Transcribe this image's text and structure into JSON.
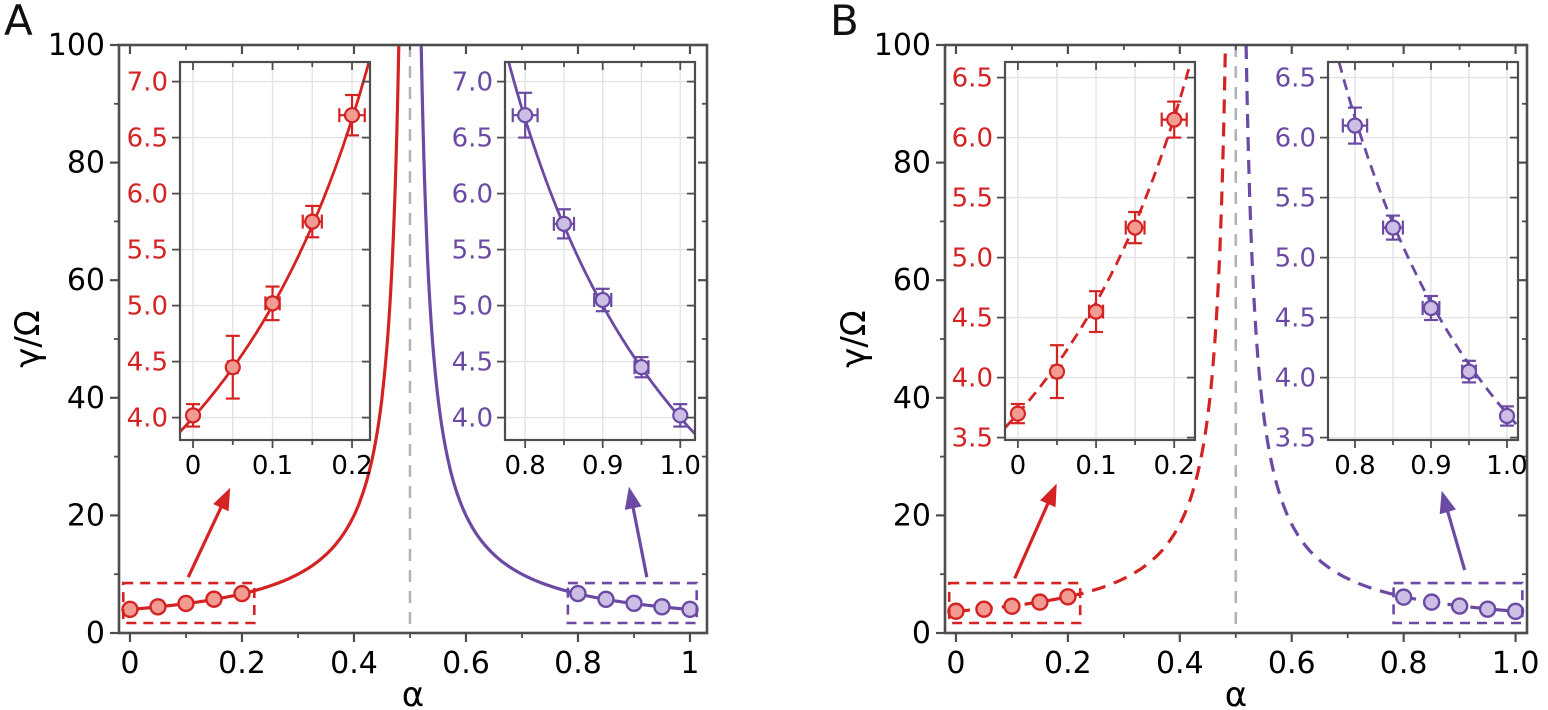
{
  "figure": {
    "background": "#ffffff"
  },
  "colors": {
    "red": "#D42323",
    "red_marker_fill": "#F29B92",
    "purple": "#6B4AA3",
    "purple_marker_fill": "#CDBEE6",
    "divergence_line": "#B3B3B3",
    "spine": "#4D4D4D",
    "grid": "#E3E3E3"
  },
  "chart_data": {
    "type": "line",
    "title": "",
    "description": "Damping rate gamma/Omega versus alpha, diverging at alpha = 0.5; panel A solid curves, panel B dashed curves; each panel has two zoom insets with error-bar data.",
    "panels": [
      {
        "label": "A",
        "line_style": "solid",
        "xlabel": "α",
        "ylabel": "γ/Ω",
        "xlim": [
          -0.0196,
          1.0304
        ],
        "ylim": [
          0,
          100
        ],
        "xticks": [
          0,
          0.2,
          0.4,
          0.6,
          0.8,
          1.0
        ],
        "xtick_labels": [
          "0",
          "0.2",
          "0.4",
          "0.6",
          "0.8",
          "1"
        ],
        "x_minor_step": 0.1,
        "yticks": [
          0,
          20,
          40,
          60,
          80,
          100
        ],
        "ytick_labels": [
          "0",
          "20",
          "40",
          "60",
          "80",
          "100"
        ],
        "y_minor_step": 10,
        "grid": false,
        "legend": "none",
        "divergence_x": 0.5,
        "curve_model": {
          "formula": "y = A0 / |1 - 2*alpha|^p",
          "A0": 4.0,
          "p": 1.0
        },
        "branches": [
          {
            "name": "low-alpha-branch",
            "color": "#D42323",
            "domain": [
              0.0,
              0.5
            ]
          },
          {
            "name": "high-alpha-branch",
            "color": "#6B4AA3",
            "domain": [
              0.5,
              1.0
            ]
          }
        ],
        "series": [
          {
            "name": "data-low-alpha",
            "color": "#D42323",
            "marker_fill": "#F29B92",
            "x": [
              0,
              0.05,
              0.1,
              0.15,
              0.2
            ],
            "y": [
              4.02,
              4.45,
              5.02,
              5.75,
              6.7
            ],
            "yerr": [
              0.1,
              0.28,
              0.15,
              0.14,
              0.18
            ],
            "xerr": [
              0.004,
              0.006,
              0.009,
              0.012,
              0.016
            ]
          },
          {
            "name": "data-high-alpha",
            "color": "#6B4AA3",
            "marker_fill": "#CDBEE6",
            "x": [
              0.8,
              0.85,
              0.9,
              0.95,
              1.0
            ],
            "y": [
              6.7,
              5.73,
              5.05,
              4.45,
              4.02
            ],
            "yerr": [
              0.2,
              0.13,
              0.1,
              0.09,
              0.1
            ],
            "xerr": [
              0.016,
              0.013,
              0.011,
              0.009,
              0.004
            ]
          }
        ],
        "zoom_boxes": [
          {
            "color": "#D42323",
            "x": [
              -0.012,
              0.222
            ],
            "y": [
              1.7,
              8.5
            ]
          },
          {
            "color": "#6B4AA3",
            "x": [
              0.782,
              1.012
            ],
            "y": [
              1.7,
              8.5
            ]
          }
        ],
        "arrows": [
          {
            "color": "#D42323",
            "from": [
              0.104,
              9.5
            ],
            "to": [
              0.179,
              24.7
            ]
          },
          {
            "color": "#6B4AA3",
            "from": [
              0.923,
              9.5
            ],
            "to": [
              0.891,
              24.9
            ]
          }
        ],
        "insets": [
          {
            "side": "left",
            "tick_color": "#D42323",
            "series_ref": 0,
            "xlim": [
              -0.0164,
              0.2226
            ],
            "ylim": [
              3.8,
              7.175
            ],
            "xticks": [
              0,
              0.1,
              0.2
            ],
            "xtick_labels": [
              "0",
              "0.1",
              "0.2"
            ],
            "x_minor_step": 0.05,
            "yticks": [
              4.0,
              4.5,
              5.0,
              5.5,
              6.0,
              6.5,
              7.0
            ],
            "ytick_labels": [
              "4.0",
              "4.5",
              "5.0",
              "5.5",
              "6.0",
              "6.5",
              "7.0"
            ]
          },
          {
            "side": "right",
            "tick_color": "#6B4AA3",
            "series_ref": 1,
            "xlim": [
              0.774,
              1.019
            ],
            "ylim": [
              3.8,
              7.175
            ],
            "xticks": [
              0.8,
              0.9,
              1.0
            ],
            "xtick_labels": [
              "0.8",
              "0.9",
              "1.0"
            ],
            "x_minor_step": 0.05,
            "yticks": [
              4.0,
              4.5,
              5.0,
              5.5,
              6.0,
              6.5,
              7.0
            ],
            "ytick_labels": [
              "4.0",
              "4.5",
              "5.0",
              "5.5",
              "6.0",
              "6.5",
              "7.0"
            ]
          }
        ]
      },
      {
        "label": "B",
        "line_style": "dashed",
        "xlabel": "α",
        "ylabel": "γ/Ω",
        "xlim": [
          -0.0196,
          1.0204
        ],
        "ylim": [
          0,
          100
        ],
        "xticks": [
          0,
          0.2,
          0.4,
          0.6,
          0.8,
          1.0
        ],
        "xtick_labels": [
          "0",
          "0.2",
          "0.4",
          "0.6",
          "0.8",
          "1.0"
        ],
        "x_minor_step": 0.1,
        "yticks": [
          0,
          20,
          40,
          60,
          80,
          100
        ],
        "ytick_labels": [
          "0",
          "20",
          "40",
          "60",
          "80",
          "100"
        ],
        "y_minor_step": 10,
        "grid": false,
        "legend": "none",
        "divergence_x": 0.5,
        "curve_model": {
          "formula": "y = A0 / |1 - 2*alpha|^p",
          "A0": 3.7,
          "p": 1.0
        },
        "branches": [
          {
            "name": "low-alpha-branch",
            "color": "#D42323",
            "domain": [
              0.0,
              0.5
            ]
          },
          {
            "name": "high-alpha-branch",
            "color": "#6B4AA3",
            "domain": [
              0.5,
              1.0
            ]
          }
        ],
        "series": [
          {
            "name": "data-low-alpha",
            "color": "#D42323",
            "marker_fill": "#F29B92",
            "x": [
              0,
              0.05,
              0.1,
              0.15,
              0.2
            ],
            "y": [
              3.7,
              4.05,
              4.55,
              5.25,
              6.15
            ],
            "yerr": [
              0.08,
              0.22,
              0.17,
              0.13,
              0.15
            ],
            "xerr": [
              0.004,
              0.006,
              0.009,
              0.012,
              0.016
            ]
          },
          {
            "name": "data-high-alpha",
            "color": "#6B4AA3",
            "marker_fill": "#CDBEE6",
            "x": [
              0.8,
              0.85,
              0.9,
              0.95,
              1.0
            ],
            "y": [
              6.1,
              5.25,
              4.58,
              4.05,
              3.68
            ],
            "yerr": [
              0.15,
              0.1,
              0.1,
              0.09,
              0.08
            ],
            "xerr": [
              0.016,
              0.013,
              0.011,
              0.009,
              0.004
            ]
          }
        ],
        "zoom_boxes": [
          {
            "color": "#D42323",
            "x": [
              -0.012,
              0.222
            ],
            "y": [
              1.7,
              8.5
            ]
          },
          {
            "color": "#6B4AA3",
            "x": [
              0.782,
              1.012
            ],
            "y": [
              1.7,
              8.5
            ]
          }
        ],
        "arrows": [
          {
            "color": "#D42323",
            "from": [
              0.105,
              9.3
            ],
            "to": [
              0.18,
              25.4
            ]
          },
          {
            "color": "#6B4AA3",
            "from": [
              0.909,
              10.7
            ],
            "to": [
              0.868,
              24.2
            ]
          }
        ],
        "insets": [
          {
            "side": "left",
            "tick_color": "#D42323",
            "series_ref": 0,
            "xlim": [
              -0.0165,
              0.2266
            ],
            "ylim": [
              3.48,
              6.63
            ],
            "xticks": [
              0,
              0.1,
              0.2
            ],
            "xtick_labels": [
              "0",
              "0.1",
              "0.2"
            ],
            "x_minor_step": 0.05,
            "yticks": [
              3.5,
              4.0,
              4.5,
              5.0,
              5.5,
              6.0,
              6.5
            ],
            "ytick_labels": [
              "3.5",
              "4.0",
              "4.5",
              "5.0",
              "5.5",
              "6.0",
              "6.5"
            ]
          },
          {
            "side": "right",
            "tick_color": "#6B4AA3",
            "series_ref": 1,
            "xlim": [
              0.7645,
              1.0145
            ],
            "ylim": [
              3.48,
              6.63
            ],
            "xticks": [
              0.8,
              0.9,
              1.0
            ],
            "xtick_labels": [
              "0.8",
              "0.9",
              "1.0"
            ],
            "x_minor_step": 0.05,
            "yticks": [
              3.5,
              4.0,
              4.5,
              5.0,
              5.5,
              6.0,
              6.5
            ],
            "ytick_labels": [
              "3.5",
              "4.0",
              "4.5",
              "5.0",
              "5.5",
              "6.0",
              "6.5"
            ]
          }
        ]
      }
    ]
  }
}
